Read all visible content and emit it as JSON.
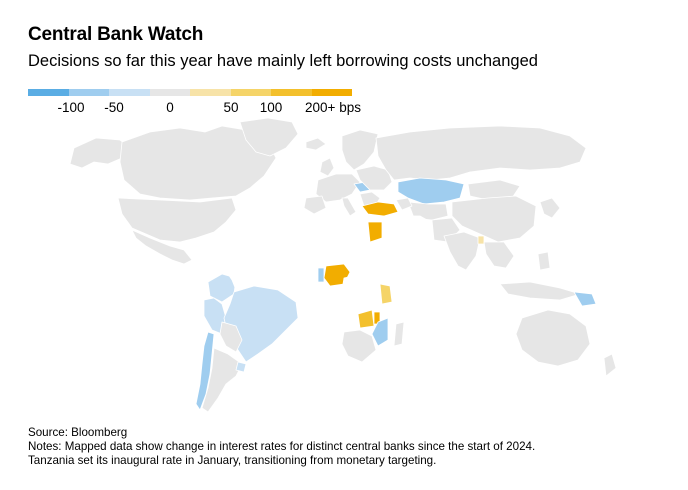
{
  "title": "Central Bank Watch",
  "subtitle": "Decisions so far this year have mainly left borrowing costs unchanged",
  "colors": {
    "neutral": "#e6e6e6",
    "no_data": "#ffffff",
    "cut_100": "#5aade4",
    "cut_50": "#9fcdef",
    "cut_small": "#c8e0f4",
    "hike_small": "#f7e3a8",
    "hike_50": "#f5d468",
    "hike_100": "#f3c02c",
    "hike_200": "#f2ad00"
  },
  "legend": {
    "swatches": [
      "#5aade4",
      "#9fcdef",
      "#c8e0f4",
      "#e6e6e6",
      "#f7e3a8",
      "#f5d468",
      "#f3c02c",
      "#f2ad00"
    ],
    "labels": [
      "-100",
      "-50",
      "0",
      "50",
      "100",
      "200+ bps"
    ]
  },
  "source": "Source: Bloomberg",
  "notes": [
    "Notes: Mapped data show change in interest rates for distinct central banks since the start of 2024.",
    "Tanzania set its inaugural rate in January, transitioning from monetary targeting."
  ]
}
